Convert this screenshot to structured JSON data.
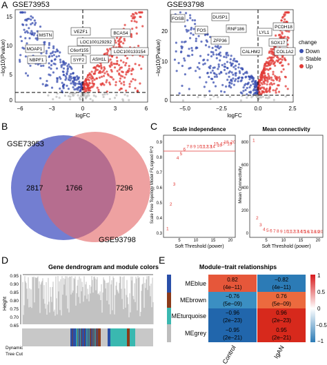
{
  "colors": {
    "down": "#3a4fb0",
    "stable": "#bdbdbd",
    "up": "#e23a36",
    "hm_red": "#d7191c",
    "hm_blue": "#2c7bb6"
  },
  "panelA": {
    "label": "A",
    "left": {
      "title": "GSE73953",
      "xlabel": "logFC",
      "ylabel": "−log10(Pvalue)",
      "xticks": [
        "−6",
        "−3",
        "0",
        "3",
        "6"
      ],
      "yticks": [
        "0",
        "5",
        "10",
        "15"
      ],
      "genes": [
        "MSTN",
        "VEZF1",
        "BCAS4",
        "LOC100129292",
        "MOAP1",
        "C6orf155",
        "LOC100133154",
        "NBPF1",
        "SYF2",
        "ASH1L"
      ]
    },
    "right": {
      "title": "GSE93798",
      "xlabel": "logFC",
      "ylabel": "−log10(Pvalue)",
      "xticks": [
        "−5.0",
        "−2.5",
        "0.0",
        "2.5"
      ],
      "yticks": [
        "0",
        "10",
        "20"
      ],
      "genes": [
        "FOSB",
        "DUSP1",
        "RNF186",
        "FOS",
        "ZFP36",
        "LYL1",
        "PCDH18",
        "SOX17",
        "CALHM2",
        "COL1A2"
      ]
    },
    "legend": {
      "title": "change",
      "items": [
        "Down",
        "Stable",
        "Up"
      ]
    }
  },
  "panelB": {
    "label": "B",
    "set1": "GSE73953",
    "set2": "GSE93798",
    "only1": "2817",
    "both": "1766",
    "only2": "7296"
  },
  "panelC": {
    "label": "C",
    "left": {
      "title": "Scale independence",
      "xlabel": "Soft Threshold (power)",
      "ylabel": "Scale Free Topology Model Fit,signed R^2",
      "xticks": [
        "5",
        "10",
        "15",
        "20"
      ],
      "yticks": [
        "0.3",
        "0.4",
        "0.5",
        "0.6",
        "0.7",
        "0.8",
        "0.9"
      ]
    },
    "right": {
      "title": "Mean connectivity",
      "xlabel": "Soft Threshold (power)",
      "ylabel": "Mean Connectivity",
      "xticks": [
        "5",
        "10",
        "15",
        "20"
      ],
      "yticks": [
        "0",
        "200",
        "400",
        "600",
        "800"
      ]
    }
  },
  "panelD": {
    "label": "D",
    "title": "Gene dendrogram and module colors",
    "ylabel": "Height",
    "yticks": [
      "0.95",
      "0.90",
      "0.85",
      "0.80",
      "0.75",
      "0.70",
      "0.65"
    ],
    "rowlabel1": "Dynamic",
    "rowlabel2": "Tree Cut"
  },
  "panelE": {
    "label": "E",
    "title": "Module−trait relationships",
    "rows": [
      "MEblue",
      "MEbrown",
      "MEturquoise",
      "MEgrey"
    ],
    "cols": [
      "Control",
      "IgAN"
    ],
    "cells": [
      [
        "0.82",
        "(4e−11)",
        "−0.82",
        "(4e−11)"
      ],
      [
        "−0.76",
        "(5e−09)",
        "0.76",
        "(5e−09)"
      ],
      [
        "−0.96",
        "(2e−23)",
        "0.96",
        "(2e−23)"
      ],
      [
        "−0.95",
        "(2e−21)",
        "0.95",
        "(2e−21)"
      ]
    ],
    "scale": [
      "1",
      "0.5",
      "0",
      "−0.5",
      "−1"
    ]
  }
}
